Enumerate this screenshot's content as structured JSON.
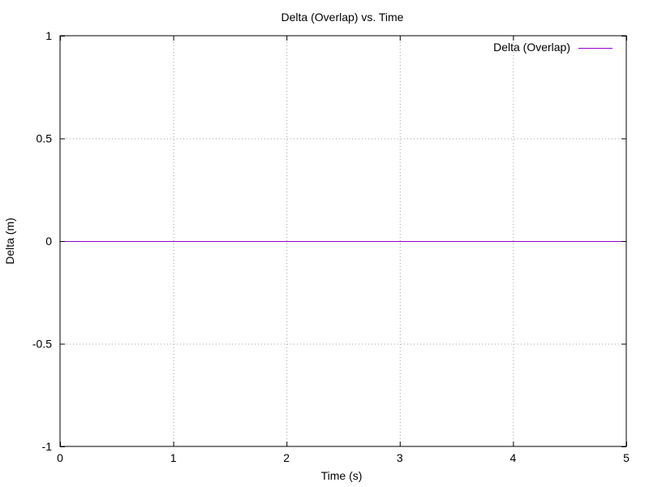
{
  "chart_data": {
    "type": "line",
    "title": "Delta (Overlap) vs. Time",
    "xlabel": "Time (s)",
    "ylabel": "Delta (m)",
    "xlim": [
      0,
      5
    ],
    "ylim": [
      -1,
      1
    ],
    "xticks": [
      0,
      1,
      2,
      3,
      4,
      5
    ],
    "xtick_labels": [
      "0",
      "1",
      "2",
      "3",
      "4",
      "5"
    ],
    "yticks": [
      -1,
      -0.5,
      0,
      0.5,
      1
    ],
    "ytick_labels": [
      "-1",
      "-0.5",
      "0",
      "0.5",
      "1"
    ],
    "grid": true,
    "legend_position": "top-right",
    "series": [
      {
        "name": "Delta (Overlap)",
        "color": "#9400d3",
        "x": [
          0,
          5
        ],
        "y": [
          0,
          0
        ]
      }
    ]
  }
}
